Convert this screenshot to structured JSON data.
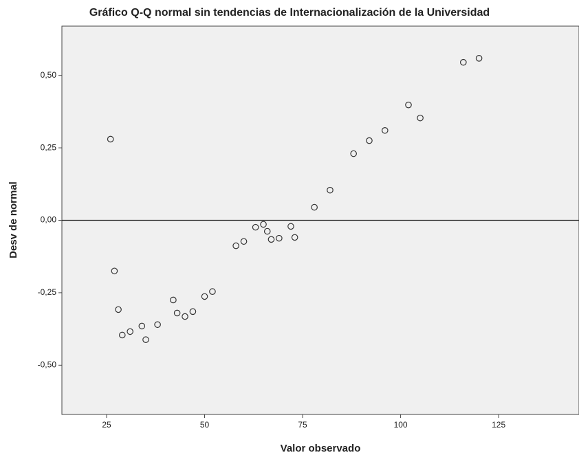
{
  "chart_data": {
    "type": "scatter",
    "title": "Gráfico Q-Q normal sin tendencias de Internacionalización de la Universidad",
    "xlabel": "Valor observado",
    "ylabel": "Desv de normal",
    "x": [
      26,
      27,
      28,
      29,
      31,
      34,
      35,
      38,
      42,
      43,
      45,
      47,
      50,
      52,
      58,
      60,
      63,
      65,
      66,
      67,
      69,
      72,
      73,
      78,
      82,
      88,
      92,
      96,
      102,
      105,
      116,
      120
    ],
    "values": [
      0.28,
      -0.175,
      -0.308,
      -0.396,
      -0.384,
      -0.365,
      -0.412,
      -0.36,
      -0.275,
      -0.32,
      -0.332,
      -0.315,
      -0.263,
      -0.246,
      -0.088,
      -0.073,
      -0.024,
      -0.014,
      -0.038,
      -0.066,
      -0.062,
      -0.021,
      -0.059,
      0.045,
      0.104,
      0.23,
      0.275,
      0.31,
      0.398,
      0.353,
      0.545,
      0.559
    ],
    "color": "#333333",
    "xlim": [
      13.6,
      145.5
    ],
    "ylim": [
      -0.67,
      0.67
    ],
    "xticks": [
      25,
      50,
      75,
      100,
      125
    ],
    "yticks": [
      {
        "value": 0.5,
        "label": "0,50"
      },
      {
        "value": 0.25,
        "label": "0,25"
      },
      {
        "value": 0,
        "label": "0,00"
      },
      {
        "value": -0.25,
        "label": "-0,25"
      },
      {
        "value": -0.5,
        "label": "-0,50"
      }
    ],
    "reference_y": 0
  }
}
